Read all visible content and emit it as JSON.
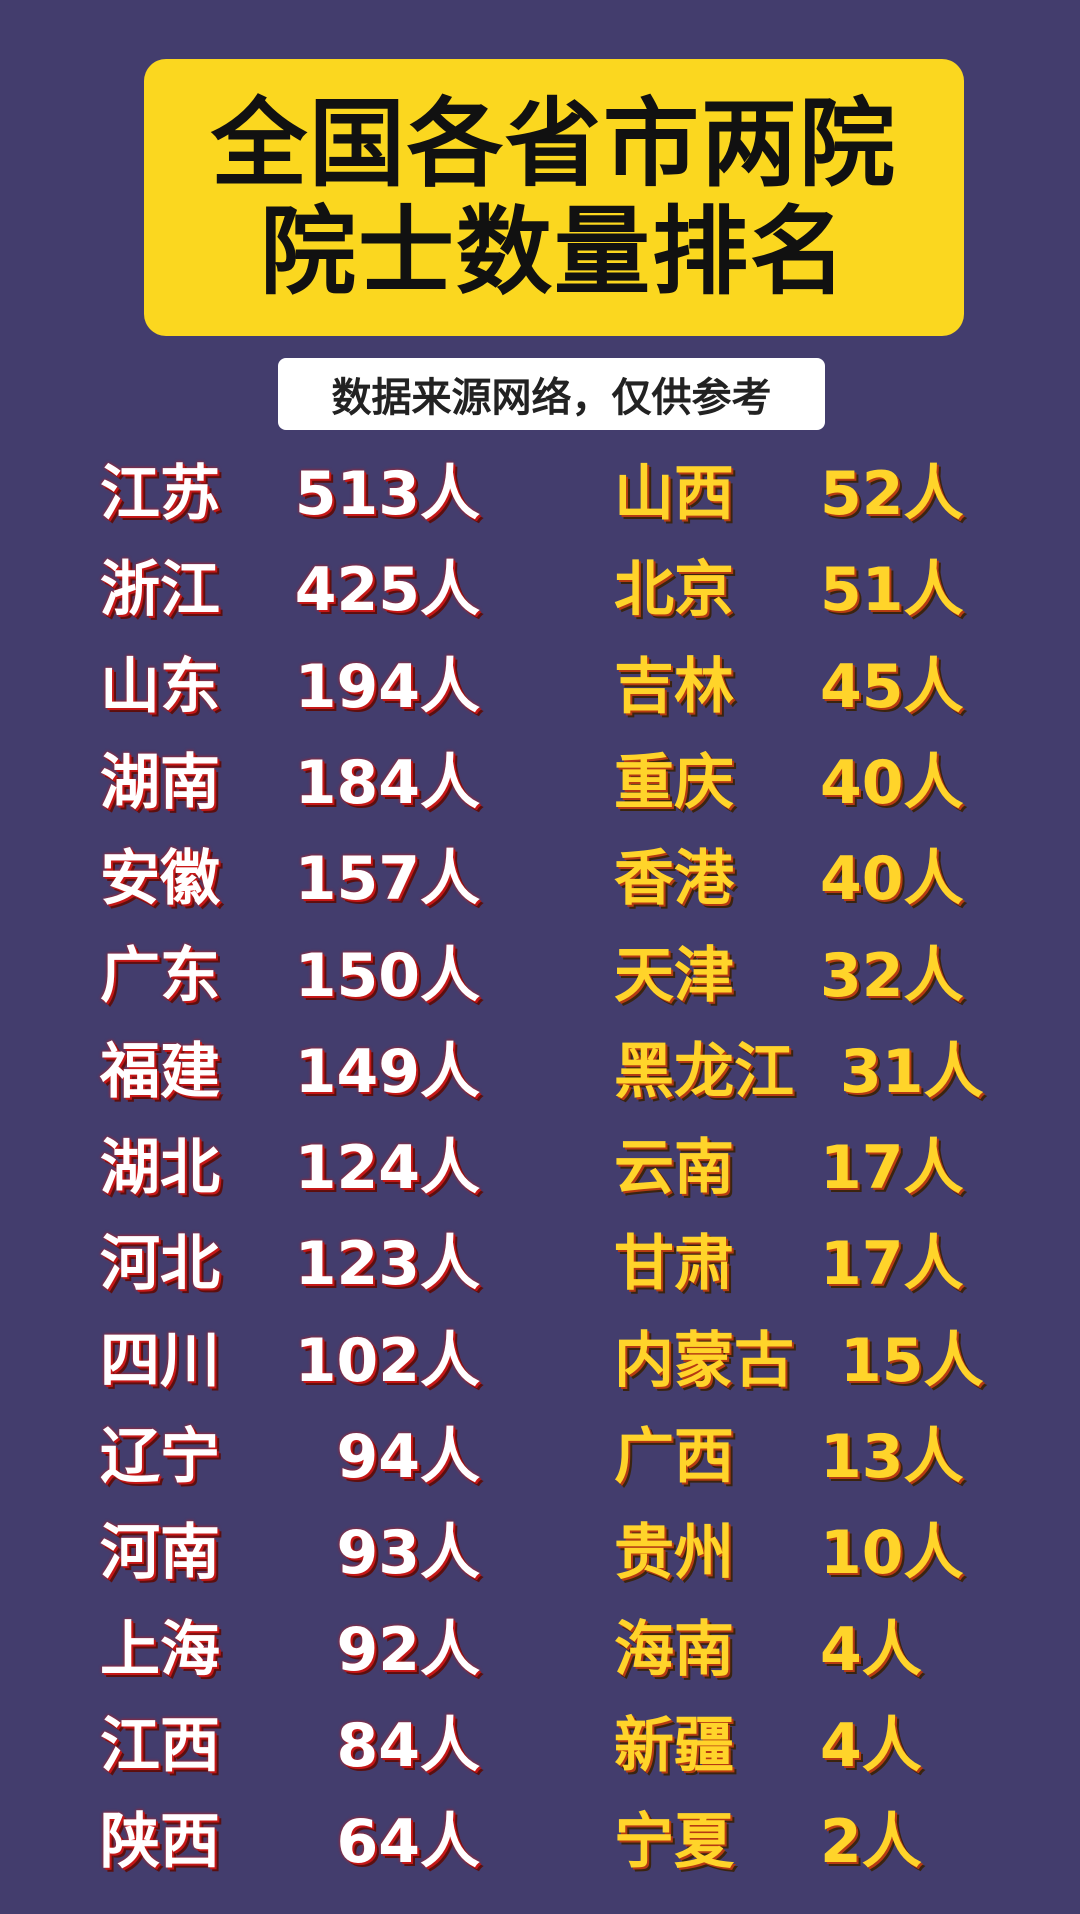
{
  "header": {
    "title_lines": [
      "全国各省市两院",
      "院士数量排名"
    ],
    "subtitle": "数据来源网络，仅供参考"
  },
  "left": [
    {
      "name": "江苏",
      "count": "513人"
    },
    {
      "name": "浙江",
      "count": "425人"
    },
    {
      "name": "山东",
      "count": "194人"
    },
    {
      "name": "湖南",
      "count": "184人"
    },
    {
      "name": "安徽",
      "count": "157人"
    },
    {
      "name": "广东",
      "count": "150人"
    },
    {
      "name": "福建",
      "count": "149人"
    },
    {
      "name": "湖北",
      "count": "124人"
    },
    {
      "name": "河北",
      "count": "123人"
    },
    {
      "name": "四川",
      "count": "102人"
    },
    {
      "name": "辽宁",
      "count": "94人"
    },
    {
      "name": "河南",
      "count": "93人"
    },
    {
      "name": "上海",
      "count": "92人"
    },
    {
      "name": "江西",
      "count": "84人"
    },
    {
      "name": "陕西",
      "count": "64人"
    }
  ],
  "right": [
    {
      "name": "山西",
      "count": "52人"
    },
    {
      "name": "北京",
      "count": "51人"
    },
    {
      "name": "吉林",
      "count": "45人"
    },
    {
      "name": "重庆",
      "count": "40人"
    },
    {
      "name": "香港",
      "count": "40人"
    },
    {
      "name": "天津",
      "count": "32人"
    },
    {
      "name": "黑龙江",
      "count": "31人"
    },
    {
      "name": "云南",
      "count": "17人"
    },
    {
      "name": "甘肃",
      "count": "17人"
    },
    {
      "name": "内蒙古",
      "count": "15人"
    },
    {
      "name": "广西",
      "count": "13人"
    },
    {
      "name": "贵州",
      "count": "10人"
    },
    {
      "name": "海南",
      "count": "4人"
    },
    {
      "name": "新疆",
      "count": "4人"
    },
    {
      "name": "宁夏",
      "count": "2人"
    }
  ]
}
